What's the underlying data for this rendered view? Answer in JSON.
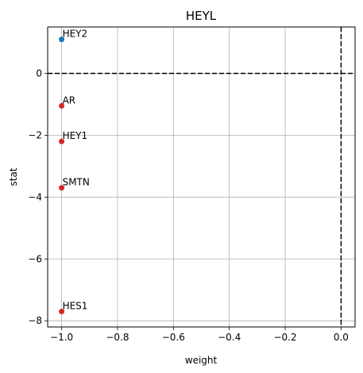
{
  "chart_data": {
    "type": "scatter",
    "title": "HEYL",
    "xlabel": "weight",
    "ylabel": "stat",
    "xlim": [
      -1.05,
      0.05
    ],
    "ylim": [
      -8.2,
      1.5
    ],
    "xticks": [
      -1.0,
      -0.8,
      -0.6,
      -0.4,
      -0.2,
      0.0
    ],
    "xtick_labels": [
      "−1.0",
      "−0.8",
      "−0.6",
      "−0.4",
      "−0.2",
      "0.0"
    ],
    "yticks": [
      0,
      -2,
      -4,
      -6,
      -8
    ],
    "ytick_labels": [
      "0",
      "−2",
      "−4",
      "−6",
      "−8"
    ],
    "grid": true,
    "reference_lines": {
      "y": 0,
      "x": 0,
      "style": "dashed"
    },
    "points": [
      {
        "label": "HEY2",
        "x": -1.0,
        "y": 1.1,
        "color": "#1f77b4"
      },
      {
        "label": "AR",
        "x": -1.0,
        "y": -1.05,
        "color": "#d62728"
      },
      {
        "label": "HEY1",
        "x": -1.0,
        "y": -2.2,
        "color": "#d62728"
      },
      {
        "label": "SMTN",
        "x": -1.0,
        "y": -3.7,
        "color": "#d62728"
      },
      {
        "label": "HES1",
        "x": -1.0,
        "y": -7.7,
        "color": "#d62728"
      }
    ]
  }
}
